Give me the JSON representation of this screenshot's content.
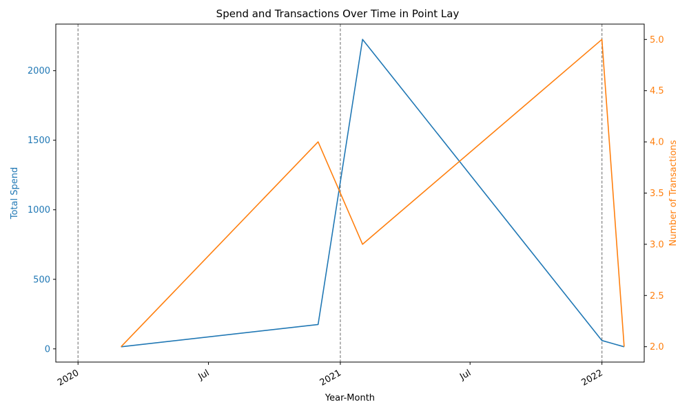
{
  "chart_data": {
    "type": "line",
    "title": "Spend and Transactions Over Time in Point Lay",
    "xlabel": "Year-Month",
    "x_tick_labels": [
      {
        "date": "2020-01-01",
        "label": "2020"
      },
      {
        "date": "2020-07-01",
        "label": "Jul"
      },
      {
        "date": "2021-01-01",
        "label": "2021"
      },
      {
        "date": "2021-07-01",
        "label": "Jul"
      },
      {
        "date": "2022-01-01",
        "label": "2022"
      }
    ],
    "xlim": [
      "2019-12-01",
      "2022-03-01"
    ],
    "year_lines": [
      "2020-01-01",
      "2021-01-01",
      "2022-01-01"
    ],
    "series": [
      {
        "name": "Total Spend",
        "axis": "left",
        "color": "#1f77b4",
        "x": [
          "2020-03-01",
          "2020-12-01",
          "2021-02-01",
          "2022-01-01",
          "2022-02-01"
        ],
        "values": [
          15,
          175,
          2225,
          60,
          15
        ]
      },
      {
        "name": "Number of Transactions",
        "axis": "right",
        "color": "#ff7f0e",
        "x": [
          "2020-03-01",
          "2020-12-01",
          "2021-02-01",
          "2022-01-01",
          "2022-02-01"
        ],
        "values": [
          2,
          4,
          3,
          5,
          2
        ]
      }
    ],
    "y_left": {
      "label": "Total Spend",
      "color": "#1f77b4",
      "ylim": [
        -95,
        2335
      ],
      "ticks": [
        0,
        500,
        1000,
        1500,
        2000
      ]
    },
    "y_right": {
      "label": "Number of Transactions",
      "color": "#ff7f0e",
      "ylim": [
        1.85,
        5.15
      ],
      "ticks": [
        2.0,
        2.5,
        3.0,
        3.5,
        4.0,
        4.5,
        5.0
      ]
    },
    "grid": false,
    "legend": "none"
  }
}
